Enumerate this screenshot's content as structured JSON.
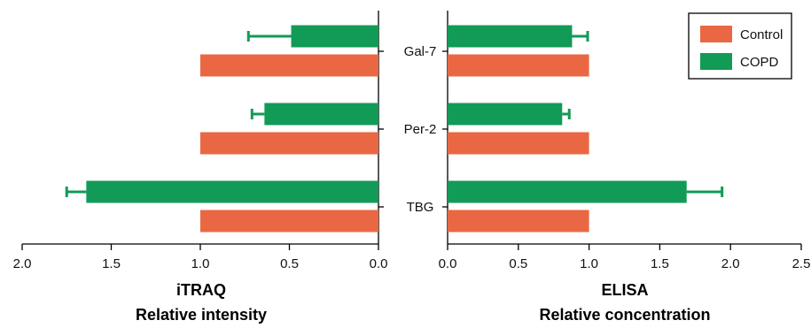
{
  "chart_data": {
    "type": "bar",
    "orientation": "horizontal",
    "categories": [
      "Gal-7",
      "Per-2",
      "TBG"
    ],
    "colors": {
      "Control": "#E96843",
      "COPD": "#129A57"
    },
    "legend": {
      "placement": "top-right",
      "entries": [
        "Control",
        "COPD"
      ]
    },
    "panels": [
      {
        "xlabel": "iTRAQ",
        "xlabel2": "Relative intensity",
        "xlim": [
          0.0,
          2.0
        ],
        "x_reversed": true,
        "ticks": [
          "2.0",
          "1.5",
          "1.0",
          "0.5",
          "0.0"
        ],
        "tick_values": [
          2.0,
          1.5,
          1.0,
          0.5,
          0.0
        ],
        "series": [
          {
            "name": "Control",
            "values": [
              1.0,
              1.0,
              1.0
            ],
            "errors": [
              0,
              0,
              0
            ]
          },
          {
            "name": "COPD",
            "values": [
              0.49,
              0.64,
              1.64
            ],
            "errors": [
              0.24,
              0.07,
              0.11
            ]
          }
        ]
      },
      {
        "xlabel": "ELISA",
        "xlabel2": "Relative concentration",
        "xlim": [
          0.0,
          2.5
        ],
        "x_reversed": false,
        "ticks": [
          "0.0",
          "0.5",
          "1.0",
          "1.5",
          "2.0",
          "2.5"
        ],
        "tick_values": [
          0.0,
          0.5,
          1.0,
          1.5,
          2.0,
          2.5
        ],
        "series": [
          {
            "name": "Control",
            "values": [
              1.0,
              1.0,
              1.0
            ],
            "errors": [
              0,
              0,
              0
            ]
          },
          {
            "name": "COPD",
            "values": [
              0.88,
              0.81,
              1.69
            ],
            "errors": [
              0.11,
              0.05,
              0.25
            ]
          }
        ]
      }
    ]
  }
}
